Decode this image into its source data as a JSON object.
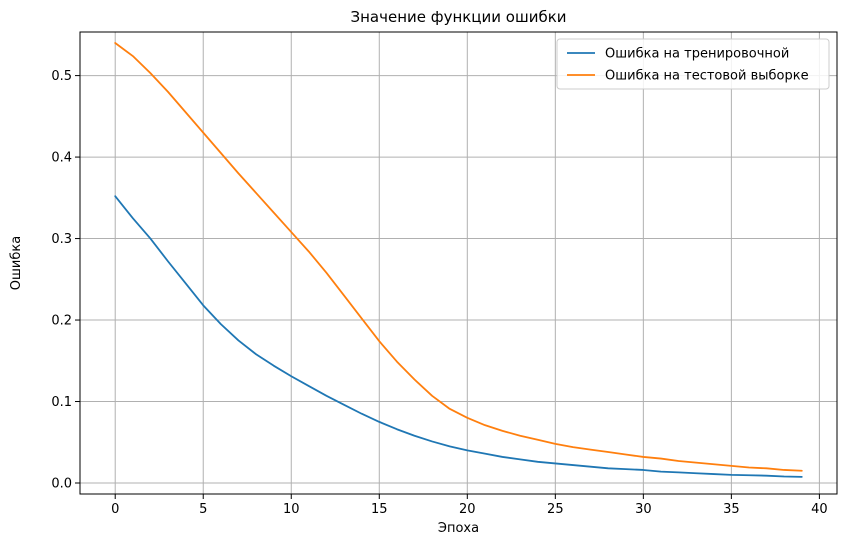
{
  "chart_data": {
    "type": "line",
    "title": "Значение функции ошибки",
    "xlabel": "Эпоха",
    "ylabel": "Ошибка",
    "xlim": [
      -2,
      41
    ],
    "ylim": [
      -0.0135,
      0.5535
    ],
    "xticks": [
      0,
      5,
      10,
      15,
      20,
      25,
      30,
      35,
      40
    ],
    "xtick_labels": [
      "0",
      "5",
      "10",
      "15",
      "20",
      "25",
      "30",
      "35",
      "40"
    ],
    "yticks": [
      0.0,
      0.1,
      0.2,
      0.3,
      0.4,
      0.5
    ],
    "ytick_labels": [
      "0.0",
      "0.1",
      "0.2",
      "0.3",
      "0.4",
      "0.5"
    ],
    "grid": true,
    "legend_position": "top-right",
    "x": [
      0,
      1,
      2,
      3,
      4,
      5,
      6,
      7,
      8,
      9,
      10,
      11,
      12,
      13,
      14,
      15,
      16,
      17,
      18,
      19,
      20,
      21,
      22,
      23,
      24,
      25,
      26,
      27,
      28,
      29,
      30,
      31,
      32,
      33,
      34,
      35,
      36,
      37,
      38,
      39
    ],
    "series": [
      {
        "name": "Ошибка на тренировочной",
        "color": "#1f77b4",
        "values": [
          0.352,
          0.325,
          0.3,
          0.272,
          0.245,
          0.218,
          0.195,
          0.175,
          0.158,
          0.144,
          0.131,
          0.119,
          0.107,
          0.096,
          0.085,
          0.075,
          0.066,
          0.058,
          0.051,
          0.045,
          0.04,
          0.036,
          0.032,
          0.029,
          0.026,
          0.024,
          0.022,
          0.02,
          0.018,
          0.017,
          0.016,
          0.014,
          0.013,
          0.012,
          0.011,
          0.01,
          0.0095,
          0.009,
          0.008,
          0.0075
        ]
      },
      {
        "name": "Ошибка на тестовой выборке",
        "color": "#ff7f0e",
        "values": [
          0.54,
          0.524,
          0.503,
          0.48,
          0.455,
          0.43,
          0.405,
          0.38,
          0.356,
          0.332,
          0.308,
          0.284,
          0.258,
          0.23,
          0.202,
          0.174,
          0.149,
          0.127,
          0.107,
          0.091,
          0.08,
          0.071,
          0.064,
          0.058,
          0.053,
          0.048,
          0.044,
          0.041,
          0.038,
          0.035,
          0.032,
          0.03,
          0.027,
          0.025,
          0.023,
          0.021,
          0.019,
          0.018,
          0.016,
          0.015
        ]
      }
    ]
  }
}
